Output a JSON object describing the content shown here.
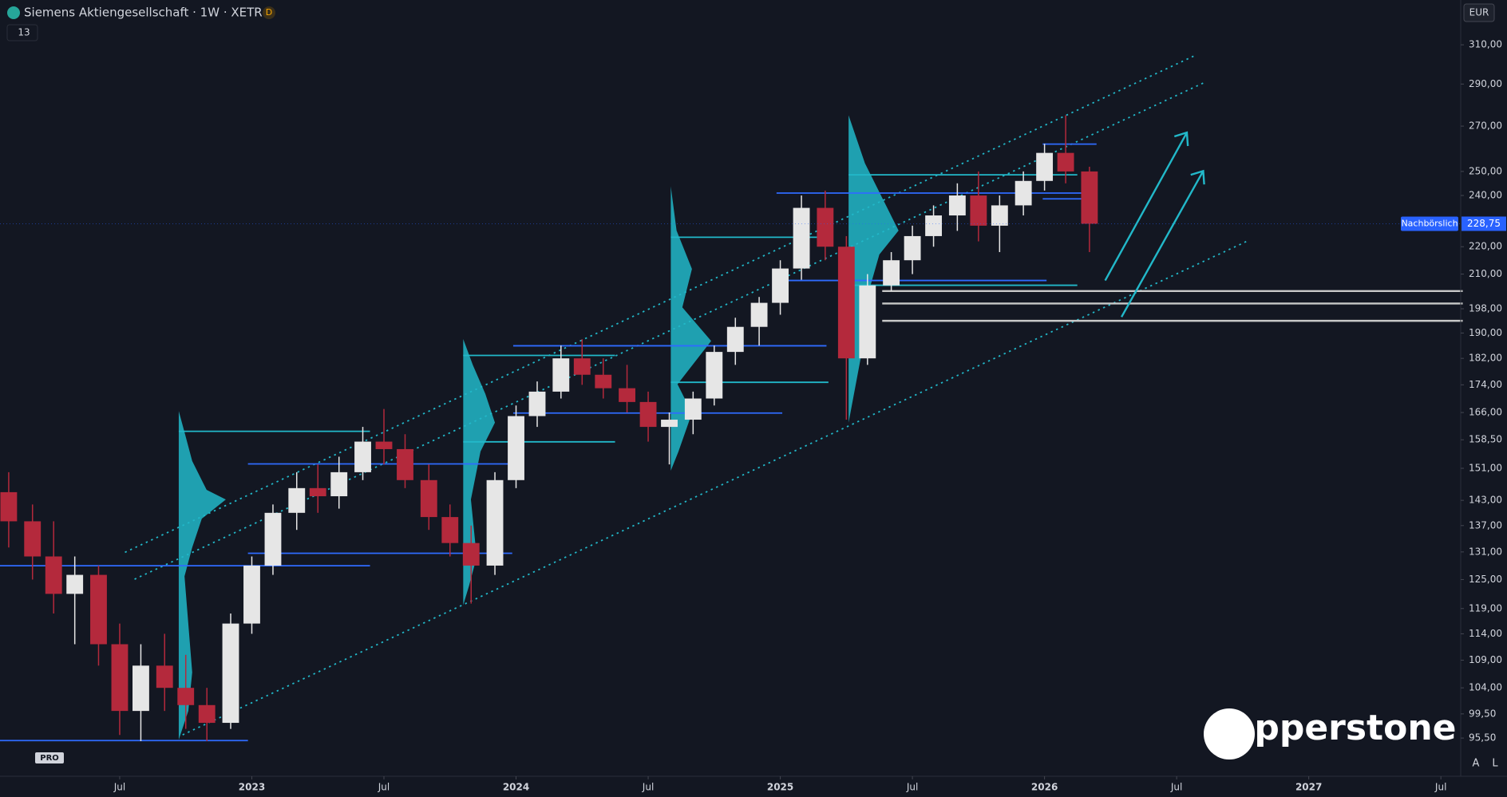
{
  "chart_data": {
    "type": "candlestick",
    "title": "Siemens Aktiengesellschaft · 1W · XETR",
    "badge": "D",
    "indicator_count": "13",
    "currency": "EUR",
    "session_label": "Nachbörslich",
    "last": {
      "value": 228.75,
      "label": "228,75"
    },
    "watermark": "pepperstone",
    "logo_badge": "PRO",
    "scale_buttons": [
      "A",
      "L"
    ],
    "log_scale": true,
    "grid": false,
    "colors": {
      "up": "#e6e6e6",
      "down": "#b4293c"
    },
    "x": [
      2022.08,
      2022.17,
      2022.25,
      2022.33,
      2022.42,
      2022.5,
      2022.58,
      2022.67,
      2022.75,
      2022.83,
      2022.92,
      2023.0,
      2023.08,
      2023.17,
      2023.25,
      2023.33,
      2023.42,
      2023.5,
      2023.58,
      2023.67,
      2023.75,
      2023.83,
      2023.92,
      2024.0,
      2024.08,
      2024.17,
      2024.25,
      2024.33,
      2024.42,
      2024.5,
      2024.58,
      2024.67,
      2024.75,
      2024.83,
      2024.92,
      2025.0,
      2025.08,
      2025.17,
      2025.25,
      2025.33,
      2025.42,
      2025.5,
      2025.58,
      2025.67,
      2025.75,
      2025.83,
      2025.92,
      2026.0,
      2026.08,
      2026.17
    ],
    "open": [
      145,
      138,
      130,
      122,
      126,
      112,
      100,
      108,
      104,
      101,
      98,
      116,
      128,
      140,
      146,
      144,
      150,
      158,
      156,
      148,
      139,
      133,
      128,
      148,
      165,
      172,
      182,
      177,
      173,
      169,
      162,
      164,
      170,
      184,
      192,
      200,
      212,
      235,
      220,
      182,
      206,
      215,
      224,
      232,
      240,
      228,
      236,
      246,
      258,
      250
    ],
    "high": [
      150,
      142,
      138,
      130,
      128,
      116,
      112,
      114,
      110,
      104,
      118,
      130,
      142,
      150,
      152,
      154,
      162,
      167,
      160,
      152,
      142,
      137,
      150,
      168,
      175,
      186,
      188,
      182,
      180,
      172,
      166,
      172,
      186,
      195,
      202,
      215,
      240,
      242,
      224,
      210,
      218,
      228,
      236,
      245,
      250,
      240,
      250,
      262,
      275,
      252
    ],
    "low": [
      132,
      125,
      118,
      112,
      108,
      96,
      95,
      100,
      97,
      95,
      97,
      114,
      126,
      136,
      140,
      141,
      148,
      152,
      146,
      136,
      130,
      120,
      126,
      146,
      162,
      170,
      174,
      170,
      166,
      158,
      152,
      160,
      168,
      180,
      186,
      196,
      208,
      215,
      164,
      180,
      204,
      210,
      220,
      226,
      222,
      218,
      232,
      242,
      245,
      218
    ],
    "close": [
      138,
      130,
      122,
      126,
      112,
      100,
      108,
      104,
      101,
      98,
      116,
      128,
      140,
      146,
      144,
      150,
      158,
      156,
      148,
      139,
      133,
      128,
      148,
      165,
      172,
      182,
      177,
      173,
      169,
      162,
      164,
      170,
      184,
      192,
      200,
      212,
      235,
      220,
      182,
      206,
      215,
      224,
      232,
      240,
      228,
      236,
      246,
      258,
      250,
      228.75
    ],
    "xlim": [
      2022.047,
      2027.575
    ],
    "xticks": [
      {
        "value": 2022.5,
        "label": "Jul"
      },
      2023,
      {
        "value": 2023.5,
        "label": "Jul"
      },
      2024,
      {
        "value": 2024.5,
        "label": "Jul"
      },
      2025,
      {
        "value": 2025.5,
        "label": "Jul"
      },
      2026,
      {
        "value": 2026.5,
        "label": "Jul"
      },
      2027,
      {
        "value": 2027.5,
        "label": "Jul"
      }
    ],
    "ylim": [
      89.5,
      334.5
    ],
    "yticks": [
      {
        "value": 310,
        "label": "310,00"
      },
      {
        "value": 290,
        "label": "290,00"
      },
      {
        "value": 270,
        "label": "270,00"
      },
      {
        "value": 250,
        "label": "250,00"
      },
      {
        "value": 240,
        "label": "240,00"
      },
      {
        "value": 220,
        "label": "220,00"
      },
      {
        "value": 210,
        "label": "210,00"
      },
      {
        "value": 198,
        "label": "198,00"
      },
      {
        "value": 190,
        "label": "190,00"
      },
      {
        "value": 182,
        "label": "182,00"
      },
      {
        "value": 174,
        "label": "174,00"
      },
      {
        "value": 166,
        "label": "166,00"
      },
      {
        "value": 158.5,
        "label": "158,50"
      },
      {
        "value": 151,
        "label": "151,00"
      },
      {
        "value": 143,
        "label": "143,00"
      },
      {
        "value": 137,
        "label": "137,00"
      },
      {
        "value": 131,
        "label": "131,00"
      },
      {
        "value": 125,
        "label": "125,00"
      },
      {
        "value": 119,
        "label": "119,00"
      },
      {
        "value": 114,
        "label": "114,00"
      },
      {
        "value": 109,
        "label": "109,00"
      },
      {
        "value": 104,
        "label": "104,00"
      },
      {
        "value": 99.5,
        "label": "99,50"
      },
      {
        "value": 95.5,
        "label": "95,50"
      }
    ]
  }
}
